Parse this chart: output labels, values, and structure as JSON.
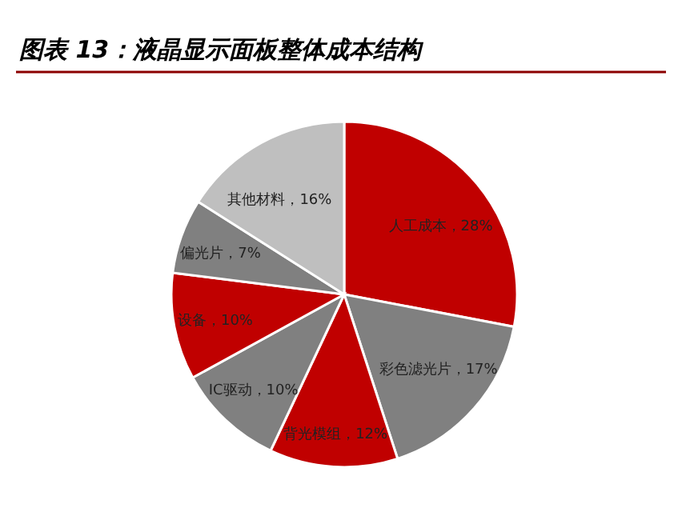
{
  "chart_data": {
    "type": "pie",
    "title": "图表 13：液晶显示面板整体成本结构",
    "categories": [
      "人工成本",
      "彩色滤光片",
      "背光模组",
      "IC驱动",
      "设备",
      "偏光片",
      "其他材料"
    ],
    "values": [
      28,
      17,
      12,
      10,
      10,
      7,
      16
    ],
    "value_labels": [
      "28%",
      "17%",
      "12%",
      "10%",
      "10%",
      "7%",
      "16%"
    ],
    "colors": [
      "#c00000",
      "#808080",
      "#c00000",
      "#808080",
      "#c00000",
      "#808080",
      "#bfbfbf"
    ]
  }
}
